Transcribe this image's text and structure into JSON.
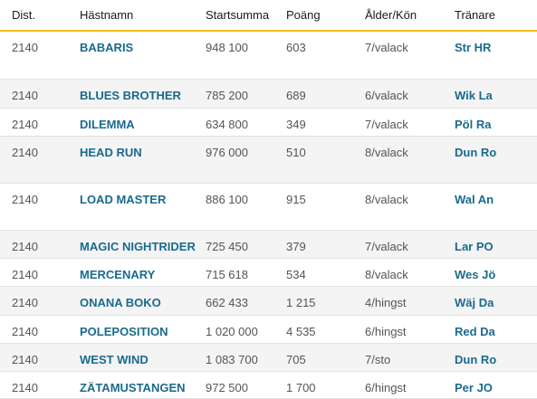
{
  "headers": {
    "dist": "Dist.",
    "name": "Hästnamn",
    "sum": "Startsumma",
    "points": "Poäng",
    "age": "Ålder/Kön",
    "trainer": "Tränare"
  },
  "rows": [
    {
      "dist": "2140",
      "name": "BABARIS",
      "sum": "948 100",
      "points": "603",
      "age": "7/valack",
      "trainer": "Str HR"
    },
    {
      "dist": "2140",
      "name": "BLUES BROTHER",
      "sum": "785 200",
      "points": "689",
      "age": "6/valack",
      "trainer": "Wik La"
    },
    {
      "dist": "2140",
      "name": "DILEMMA",
      "sum": "634 800",
      "points": "349",
      "age": "7/valack",
      "trainer": "Pöl Ra"
    },
    {
      "dist": "2140",
      "name": "HEAD RUN",
      "sum": "976 000",
      "points": "510",
      "age": "8/valack",
      "trainer": "Dun Ro"
    },
    {
      "dist": "2140",
      "name": "LOAD MASTER",
      "sum": "886 100",
      "points": "915",
      "age": "8/valack",
      "trainer": "Wal An"
    },
    {
      "dist": "2140",
      "name": "MAGIC NIGHTRIDER",
      "sum": "725 450",
      "points": "379",
      "age": "7/valack",
      "trainer": "Lar PO"
    },
    {
      "dist": "2140",
      "name": "MERCENARY",
      "sum": "715 618",
      "points": "534",
      "age": "8/valack",
      "trainer": "Wes Jö"
    },
    {
      "dist": "2140",
      "name": "ONANA BOKO",
      "sum": "662 433",
      "points": "1 215",
      "age": "4/hingst",
      "trainer": "Wäj Da"
    },
    {
      "dist": "2140",
      "name": "POLEPOSITION",
      "sum": "1 020 000",
      "points": "4 535",
      "age": "6/hingst",
      "trainer": "Red Da"
    },
    {
      "dist": "2140",
      "name": "WEST WIND",
      "sum": "1 083 700",
      "points": "705",
      "age": "7/sto",
      "trainer": "Dun Ro"
    },
    {
      "dist": "2140",
      "name": "ZÄTAMUSTANGEN",
      "sum": "972 500",
      "points": "1 700",
      "age": "6/hingst",
      "trainer": "Per JO"
    }
  ],
  "colors": {
    "accent": "#f2c300",
    "link": "#1a6a8e",
    "zebra": "#f4f4f4"
  }
}
